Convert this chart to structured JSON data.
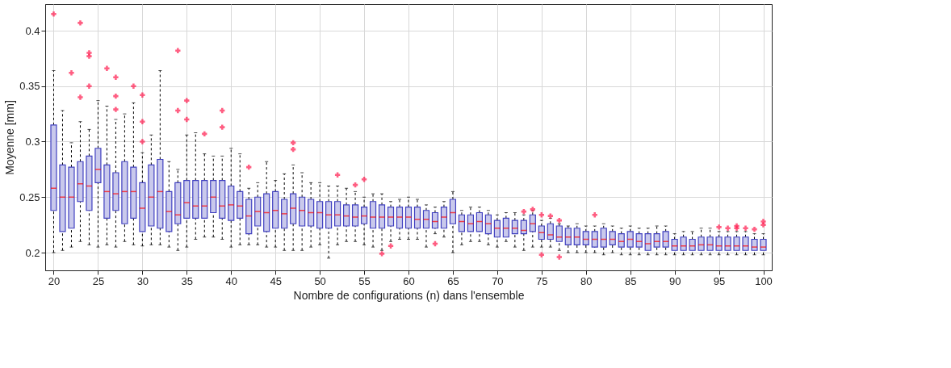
{
  "chart_data": {
    "type": "box",
    "xlabel": "Nombre de configurations (n) dans l'ensemble",
    "ylabel": "Moyenne [mm]",
    "x": [
      20,
      21,
      22,
      23,
      24,
      25,
      26,
      27,
      28,
      29,
      30,
      31,
      32,
      33,
      34,
      35,
      36,
      37,
      38,
      39,
      40,
      41,
      42,
      43,
      44,
      45,
      46,
      47,
      48,
      49,
      50,
      51,
      52,
      53,
      54,
      55,
      56,
      57,
      58,
      59,
      60,
      61,
      62,
      63,
      64,
      65,
      66,
      67,
      68,
      69,
      70,
      71,
      72,
      73,
      74,
      75,
      76,
      77,
      78,
      79,
      80,
      81,
      82,
      83,
      84,
      85,
      86,
      87,
      88,
      89,
      90,
      91,
      92,
      93,
      94,
      95,
      96,
      97,
      98,
      99,
      100
    ],
    "xlim": [
      19.5,
      100.5
    ],
    "xticks": [
      20,
      25,
      30,
      35,
      40,
      45,
      50,
      55,
      60,
      65,
      70,
      75,
      80,
      85,
      90,
      95,
      100
    ],
    "ylim": [
      0.184,
      0.424
    ],
    "yticks": [
      0.2,
      0.25,
      0.3,
      0.35,
      0.4
    ],
    "grid": true,
    "color": "#4040c0",
    "boxes": [
      {
        "low": 0.2,
        "q1": 0.238,
        "median": 0.258,
        "q3": 0.315,
        "high": 0.364,
        "outliers": [
          0.415
        ]
      },
      {
        "low": 0.202,
        "q1": 0.219,
        "median": 0.25,
        "q3": 0.279,
        "high": 0.328
      },
      {
        "low": 0.205,
        "q1": 0.222,
        "median": 0.25,
        "q3": 0.277,
        "high": 0.299,
        "outliers": [
          0.362
        ]
      },
      {
        "low": 0.21,
        "q1": 0.246,
        "median": 0.262,
        "q3": 0.282,
        "high": 0.318,
        "outliers": [
          0.407,
          0.34
        ]
      },
      {
        "low": 0.207,
        "q1": 0.238,
        "median": 0.26,
        "q3": 0.287,
        "high": 0.311,
        "outliers": [
          0.38,
          0.377,
          0.35
        ]
      },
      {
        "low": 0.205,
        "q1": 0.263,
        "median": 0.275,
        "q3": 0.294,
        "high": 0.337
      },
      {
        "low": 0.207,
        "q1": 0.231,
        "median": 0.255,
        "q3": 0.279,
        "high": 0.332,
        "outliers": [
          0.366
        ]
      },
      {
        "low": 0.205,
        "q1": 0.238,
        "median": 0.253,
        "q3": 0.272,
        "high": 0.32,
        "outliers": [
          0.358,
          0.341,
          0.329
        ]
      },
      {
        "low": 0.21,
        "q1": 0.226,
        "median": 0.255,
        "q3": 0.282,
        "high": 0.325
      },
      {
        "low": 0.207,
        "q1": 0.231,
        "median": 0.255,
        "q3": 0.277,
        "high": 0.335,
        "outliers": [
          0.35
        ]
      },
      {
        "low": 0.206,
        "q1": 0.219,
        "median": 0.24,
        "q3": 0.263,
        "high": 0.29,
        "outliers": [
          0.342,
          0.318,
          0.3
        ]
      },
      {
        "low": 0.207,
        "q1": 0.224,
        "median": 0.25,
        "q3": 0.279,
        "high": 0.306
      },
      {
        "low": 0.207,
        "q1": 0.222,
        "median": 0.255,
        "q3": 0.284,
        "high": 0.364
      },
      {
        "low": 0.205,
        "q1": 0.219,
        "median": 0.237,
        "q3": 0.255,
        "high": 0.282
      },
      {
        "low": 0.202,
        "q1": 0.226,
        "median": 0.234,
        "q3": 0.263,
        "high": 0.275,
        "outliers": [
          0.382,
          0.328
        ]
      },
      {
        "low": 0.205,
        "q1": 0.231,
        "median": 0.245,
        "q3": 0.265,
        "high": 0.306,
        "outliers": [
          0.337,
          0.32
        ]
      },
      {
        "low": 0.212,
        "q1": 0.231,
        "median": 0.242,
        "q3": 0.265,
        "high": 0.308
      },
      {
        "low": 0.214,
        "q1": 0.231,
        "median": 0.242,
        "q3": 0.265,
        "high": 0.289,
        "outliers": [
          0.307
        ]
      },
      {
        "low": 0.214,
        "q1": 0.236,
        "median": 0.25,
        "q3": 0.265,
        "high": 0.287
      },
      {
        "low": 0.212,
        "q1": 0.231,
        "median": 0.242,
        "q3": 0.265,
        "high": 0.287,
        "outliers": [
          0.328,
          0.313
        ]
      },
      {
        "low": 0.205,
        "q1": 0.229,
        "median": 0.243,
        "q3": 0.26,
        "high": 0.294
      },
      {
        "low": 0.207,
        "q1": 0.231,
        "median": 0.242,
        "q3": 0.255,
        "high": 0.289
      },
      {
        "low": 0.207,
        "q1": 0.217,
        "median": 0.233,
        "q3": 0.248,
        "high": 0.258,
        "outliers": [
          0.277
        ]
      },
      {
        "low": 0.207,
        "q1": 0.224,
        "median": 0.237,
        "q3": 0.25,
        "high": 0.263
      },
      {
        "low": 0.205,
        "q1": 0.219,
        "median": 0.236,
        "q3": 0.253,
        "high": 0.282
      },
      {
        "low": 0.205,
        "q1": 0.222,
        "median": 0.238,
        "q3": 0.255,
        "high": 0.265
      },
      {
        "low": 0.202,
        "q1": 0.222,
        "median": 0.235,
        "q3": 0.248,
        "high": 0.271
      },
      {
        "low": 0.202,
        "q1": 0.226,
        "median": 0.24,
        "q3": 0.253,
        "high": 0.279,
        "outliers": [
          0.299,
          0.293
        ]
      },
      {
        "low": 0.202,
        "q1": 0.224,
        "median": 0.238,
        "q3": 0.25,
        "high": 0.272
      },
      {
        "low": 0.205,
        "q1": 0.224,
        "median": 0.236,
        "q3": 0.248,
        "high": 0.263
      },
      {
        "low": 0.207,
        "q1": 0.222,
        "median": 0.236,
        "q3": 0.246,
        "high": 0.263
      },
      {
        "low": 0.195,
        "q1": 0.222,
        "median": 0.234,
        "q3": 0.246,
        "high": 0.26
      },
      {
        "low": 0.207,
        "q1": 0.224,
        "median": 0.234,
        "q3": 0.246,
        "high": 0.26,
        "outliers": [
          0.27
        ]
      },
      {
        "low": 0.21,
        "q1": 0.224,
        "median": 0.233,
        "q3": 0.243,
        "high": 0.258
      },
      {
        "low": 0.21,
        "q1": 0.224,
        "median": 0.232,
        "q3": 0.243,
        "high": 0.255,
        "outliers": [
          0.261
        ]
      },
      {
        "low": 0.207,
        "q1": 0.226,
        "median": 0.233,
        "q3": 0.241,
        "high": 0.25,
        "outliers": [
          0.266
        ]
      },
      {
        "low": 0.205,
        "q1": 0.222,
        "median": 0.232,
        "q3": 0.246,
        "high": 0.253
      },
      {
        "low": 0.202,
        "q1": 0.222,
        "median": 0.232,
        "q3": 0.243,
        "high": 0.253,
        "outliers": [
          0.199
        ]
      },
      {
        "low": 0.21,
        "q1": 0.224,
        "median": 0.232,
        "q3": 0.241,
        "high": 0.246,
        "outliers": [
          0.206
        ]
      },
      {
        "low": 0.212,
        "q1": 0.222,
        "median": 0.232,
        "q3": 0.241,
        "high": 0.248
      },
      {
        "low": 0.212,
        "q1": 0.222,
        "median": 0.232,
        "q3": 0.241,
        "high": 0.25
      },
      {
        "low": 0.212,
        "q1": 0.222,
        "median": 0.23,
        "q3": 0.241,
        "high": 0.248
      },
      {
        "low": 0.205,
        "q1": 0.222,
        "median": 0.23,
        "q3": 0.238,
        "high": 0.243
      },
      {
        "low": 0.217,
        "q1": 0.222,
        "median": 0.228,
        "q3": 0.236,
        "high": 0.241,
        "outliers": [
          0.208
        ]
      },
      {
        "low": 0.214,
        "q1": 0.222,
        "median": 0.232,
        "q3": 0.241,
        "high": 0.246
      },
      {
        "low": 0.2,
        "q1": 0.226,
        "median": 0.236,
        "q3": 0.248,
        "high": 0.255
      },
      {
        "low": 0.207,
        "q1": 0.219,
        "median": 0.228,
        "q3": 0.234,
        "high": 0.238
      },
      {
        "low": 0.21,
        "q1": 0.219,
        "median": 0.226,
        "q3": 0.234,
        "high": 0.241
      },
      {
        "low": 0.21,
        "q1": 0.219,
        "median": 0.228,
        "q3": 0.236,
        "high": 0.241
      },
      {
        "low": 0.207,
        "q1": 0.217,
        "median": 0.226,
        "q3": 0.234,
        "high": 0.238
      },
      {
        "low": 0.205,
        "q1": 0.214,
        "median": 0.222,
        "q3": 0.229,
        "high": 0.234
      },
      {
        "low": 0.21,
        "q1": 0.214,
        "median": 0.222,
        "q3": 0.231,
        "high": 0.236
      },
      {
        "low": 0.205,
        "q1": 0.217,
        "median": 0.222,
        "q3": 0.229,
        "high": 0.236
      },
      {
        "low": 0.202,
        "q1": 0.217,
        "median": 0.22,
        "q3": 0.229,
        "high": 0.234,
        "outliers": [
          0.237
        ]
      },
      {
        "low": 0.205,
        "q1": 0.219,
        "median": 0.226,
        "q3": 0.234,
        "high": 0.238,
        "outliers": [
          0.239
        ]
      },
      {
        "low": 0.205,
        "q1": 0.212,
        "median": 0.218,
        "q3": 0.224,
        "high": 0.229,
        "outliers": [
          0.234,
          0.198
        ]
      },
      {
        "low": 0.205,
        "q1": 0.212,
        "median": 0.216,
        "q3": 0.226,
        "high": 0.231,
        "outliers": [
          0.233
        ]
      },
      {
        "low": 0.202,
        "q1": 0.21,
        "median": 0.214,
        "q3": 0.224,
        "high": 0.226,
        "outliers": [
          0.229,
          0.196
        ]
      },
      {
        "low": 0.2,
        "q1": 0.207,
        "median": 0.214,
        "q3": 0.222,
        "high": 0.224
      },
      {
        "low": 0.2,
        "q1": 0.207,
        "median": 0.214,
        "q3": 0.222,
        "high": 0.226
      },
      {
        "low": 0.2,
        "q1": 0.207,
        "median": 0.212,
        "q3": 0.219,
        "high": 0.224
      },
      {
        "low": 0.2,
        "q1": 0.205,
        "median": 0.212,
        "q3": 0.219,
        "high": 0.224,
        "outliers": [
          0.234
        ]
      },
      {
        "low": 0.198,
        "q1": 0.205,
        "median": 0.212,
        "q3": 0.222,
        "high": 0.226
      },
      {
        "low": 0.2,
        "q1": 0.207,
        "median": 0.212,
        "q3": 0.219,
        "high": 0.224
      },
      {
        "low": 0.198,
        "q1": 0.205,
        "median": 0.21,
        "q3": 0.217,
        "high": 0.222
      },
      {
        "low": 0.198,
        "q1": 0.205,
        "median": 0.212,
        "q3": 0.219,
        "high": 0.224
      },
      {
        "low": 0.198,
        "q1": 0.205,
        "median": 0.21,
        "q3": 0.217,
        "high": 0.222
      },
      {
        "low": 0.198,
        "q1": 0.202,
        "median": 0.208,
        "q3": 0.217,
        "high": 0.222
      },
      {
        "low": 0.198,
        "q1": 0.205,
        "median": 0.21,
        "q3": 0.217,
        "high": 0.224
      },
      {
        "low": 0.198,
        "q1": 0.205,
        "median": 0.21,
        "q3": 0.219,
        "high": 0.224
      },
      {
        "low": 0.198,
        "q1": 0.202,
        "median": 0.206,
        "q3": 0.212,
        "high": 0.217
      },
      {
        "low": 0.198,
        "q1": 0.202,
        "median": 0.206,
        "q3": 0.214,
        "high": 0.219
      },
      {
        "low": 0.198,
        "q1": 0.202,
        "median": 0.206,
        "q3": 0.212,
        "high": 0.219
      },
      {
        "low": 0.198,
        "q1": 0.202,
        "median": 0.207,
        "q3": 0.214,
        "high": 0.222
      },
      {
        "low": 0.198,
        "q1": 0.202,
        "median": 0.207,
        "q3": 0.214,
        "high": 0.222
      },
      {
        "low": 0.198,
        "q1": 0.202,
        "median": 0.206,
        "q3": 0.214,
        "high": 0.219,
        "outliers": [
          0.223
        ]
      },
      {
        "low": 0.198,
        "q1": 0.202,
        "median": 0.206,
        "q3": 0.214,
        "high": 0.219,
        "outliers": [
          0.222
        ]
      },
      {
        "low": 0.198,
        "q1": 0.202,
        "median": 0.206,
        "q3": 0.214,
        "high": 0.219,
        "outliers": [
          0.222,
          0.224
        ]
      },
      {
        "low": 0.198,
        "q1": 0.202,
        "median": 0.206,
        "q3": 0.214,
        "high": 0.219,
        "outliers": [
          0.222
        ]
      },
      {
        "low": 0.198,
        "q1": 0.202,
        "median": 0.205,
        "q3": 0.212,
        "high": 0.217,
        "outliers": [
          0.221
        ]
      },
      {
        "low": 0.198,
        "q1": 0.202,
        "median": 0.205,
        "q3": 0.212,
        "high": 0.217,
        "outliers": [
          0.225,
          0.228
        ]
      }
    ]
  }
}
